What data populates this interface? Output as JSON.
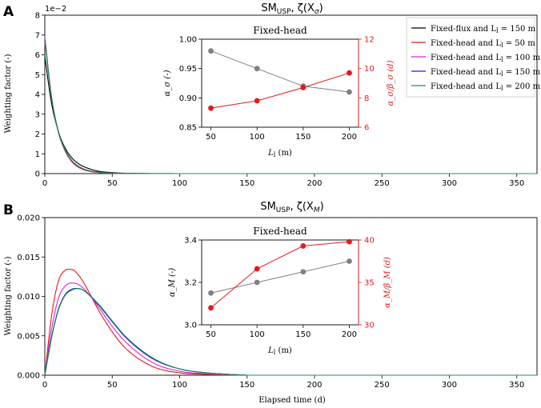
{
  "chart_data": [
    {
      "panel": "A",
      "type": "line",
      "title_main": "SM",
      "title_sub": "USP",
      "title_rest": ", ζ(X",
      "title_var_sub": "σ",
      "title_close": ")",
      "xlabel": "",
      "ylabel": "Weighting factor (-)",
      "offset_text": "1e−2",
      "xlim": [
        0,
        365
      ],
      "ylim": [
        0,
        8
      ],
      "xticks": [
        0,
        50,
        100,
        150,
        200,
        250,
        300,
        350
      ],
      "yticks": [
        0,
        1,
        2,
        3,
        4,
        5,
        6,
        7,
        8
      ],
      "legend": [
        {
          "label": "Fixed-flux and L",
          "sub": "l",
          "suffix": " = 150 m",
          "color": "#000000"
        },
        {
          "label": "Fixed-head and L",
          "sub": "l",
          "suffix": " = 50 m",
          "color": "#e41a1c"
        },
        {
          "label": "Fixed-head and L",
          "sub": "l",
          "suffix": " = 100 m",
          "color": "#e01fe0"
        },
        {
          "label": "Fixed-head and L",
          "sub": "l",
          "suffix": " = 150 m",
          "color": "#1f1ff0"
        },
        {
          "label": "Fixed-head and L",
          "sub": "l",
          "suffix": " = 200 m",
          "color": "#1a9850"
        }
      ],
      "series": [
        {
          "name": "Fixed-flux L=150",
          "color": "#000000",
          "x": [
            0,
            5,
            10,
            15,
            20,
            25,
            30,
            40,
            50,
            60,
            80,
            100
          ],
          "values": [
            5.9,
            3.55,
            2.15,
            1.3,
            0.8,
            0.5,
            0.32,
            0.12,
            0.05,
            0.02,
            0.004,
            0.0
          ]
        },
        {
          "name": "Fixed-head L=50",
          "color": "#e41a1c",
          "x": [
            0,
            5,
            10,
            15,
            20,
            25,
            30,
            40,
            50,
            60,
            80,
            100
          ],
          "values": [
            6.9,
            3.85,
            2.1,
            1.15,
            0.6,
            0.32,
            0.17,
            0.05,
            0.015,
            0.005,
            0.0,
            0.0
          ]
        },
        {
          "name": "Fixed-head L=100",
          "color": "#e01fe0",
          "x": [
            0,
            5,
            10,
            15,
            20,
            25,
            30,
            40,
            50,
            60,
            80,
            100
          ],
          "values": [
            6.8,
            3.85,
            2.12,
            1.18,
            0.64,
            0.35,
            0.19,
            0.06,
            0.02,
            0.006,
            0.0,
            0.0
          ]
        },
        {
          "name": "Fixed-head L=150",
          "color": "#1f1ff0",
          "x": [
            0,
            5,
            10,
            15,
            20,
            25,
            30,
            40,
            50,
            60,
            80,
            100
          ],
          "values": [
            6.75,
            3.85,
            2.15,
            1.2,
            0.66,
            0.37,
            0.2,
            0.07,
            0.022,
            0.007,
            0.0,
            0.0
          ]
        },
        {
          "name": "Fixed-head L=200",
          "color": "#1a9850",
          "x": [
            0,
            5,
            10,
            15,
            20,
            25,
            30,
            40,
            50,
            60,
            80,
            100
          ],
          "values": [
            6.7,
            3.85,
            2.16,
            1.22,
            0.67,
            0.38,
            0.21,
            0.07,
            0.023,
            0.007,
            0.0,
            0.0
          ]
        }
      ],
      "inset": {
        "title": "Fixed-head",
        "type": "line",
        "x": [
          50,
          100,
          150,
          200
        ],
        "xticks": [
          50,
          100,
          150,
          200
        ],
        "xlabel_main": "L",
        "xlabel_sub": "l",
        "xlabel_rest": " (m)",
        "xlim": [
          40,
          210
        ],
        "left": {
          "label": "α_σ (-)",
          "ylim": [
            0.85,
            1.0
          ],
          "yticks": [
            "0.85",
            "0.90",
            "0.95",
            "1.00"
          ],
          "values": [
            0.98,
            0.95,
            0.92,
            0.91
          ],
          "color": "#808080"
        },
        "right": {
          "label": "α_σ/β_σ (d)",
          "ylim": [
            6,
            12
          ],
          "yticks": [
            "6",
            "8",
            "10",
            "12"
          ],
          "values": [
            7.3,
            7.8,
            8.7,
            9.7
          ],
          "color": "#e41a1c"
        }
      }
    },
    {
      "panel": "B",
      "type": "line",
      "title_main": "SM",
      "title_sub": "USP",
      "title_rest": ", ζ(X",
      "title_var_sub": "M",
      "title_close": ")",
      "xlabel": "Elapsed time (d)",
      "ylabel": "Weighting factor (-)",
      "xlim": [
        0,
        365
      ],
      "ylim": [
        0,
        0.02
      ],
      "xticks": [
        0,
        50,
        100,
        150,
        200,
        250,
        300,
        350
      ],
      "yticks": [
        "0.000",
        "0.005",
        "0.010",
        "0.015",
        "0.020"
      ],
      "series": [
        {
          "name": "Fixed-flux L=150",
          "color": "#000000",
          "x": [
            0,
            5,
            10,
            15,
            20,
            25,
            30,
            40,
            50,
            60,
            80,
            100,
            120,
            150
          ],
          "values": [
            0.0,
            0.0048,
            0.0083,
            0.0102,
            0.0109,
            0.011,
            0.0106,
            0.0089,
            0.0068,
            0.0048,
            0.0021,
            0.0008,
            0.0003,
            0.0
          ]
        },
        {
          "name": "Fixed-head L=50",
          "color": "#e41a1c",
          "x": [
            0,
            5,
            10,
            15,
            20,
            25,
            30,
            40,
            50,
            60,
            80,
            100,
            120,
            150
          ],
          "values": [
            0.0,
            0.0075,
            0.0119,
            0.0133,
            0.0134,
            0.0127,
            0.0114,
            0.0082,
            0.0055,
            0.0034,
            0.0011,
            0.0003,
            0.0001,
            0.0
          ]
        },
        {
          "name": "Fixed-head L=100",
          "color": "#e01fe0",
          "x": [
            0,
            5,
            10,
            15,
            20,
            25,
            30,
            40,
            50,
            60,
            80,
            100,
            120,
            150
          ],
          "values": [
            0.0,
            0.0058,
            0.0097,
            0.0113,
            0.0117,
            0.0115,
            0.0108,
            0.0086,
            0.0062,
            0.0042,
            0.0016,
            0.0005,
            0.0002,
            0.0
          ]
        },
        {
          "name": "Fixed-head L=150",
          "color": "#1f1ff0",
          "x": [
            0,
            5,
            10,
            15,
            20,
            25,
            30,
            40,
            50,
            60,
            80,
            100,
            120,
            150
          ],
          "values": [
            0.0,
            0.0048,
            0.0083,
            0.0102,
            0.0109,
            0.011,
            0.0106,
            0.0089,
            0.0068,
            0.0048,
            0.0021,
            0.0008,
            0.0003,
            0.0
          ]
        },
        {
          "name": "Fixed-head L=200",
          "color": "#1a9850",
          "x": [
            0,
            5,
            10,
            15,
            20,
            25,
            30,
            40,
            50,
            60,
            80,
            100,
            120,
            150
          ],
          "values": [
            0.0,
            0.0047,
            0.0082,
            0.0101,
            0.0108,
            0.011,
            0.0106,
            0.009,
            0.0069,
            0.0049,
            0.0022,
            0.0008,
            0.0003,
            0.0
          ]
        }
      ],
      "inset": {
        "title": "Fixed-head",
        "type": "line",
        "x": [
          50,
          100,
          150,
          200
        ],
        "xticks": [
          50,
          100,
          150,
          200
        ],
        "xlabel_main": "L",
        "xlabel_sub": "l",
        "xlabel_rest": " (m)",
        "xlim": [
          40,
          210
        ],
        "left": {
          "label": "α_M (-)",
          "ylim": [
            3.0,
            3.4
          ],
          "yticks": [
            "3.0",
            "3.2",
            "3.4"
          ],
          "values": [
            3.15,
            3.2,
            3.25,
            3.3
          ],
          "color": "#808080"
        },
        "right": {
          "label": "α_M/β_M (d)",
          "ylim": [
            30,
            40
          ],
          "yticks": [
            "30",
            "35",
            "40"
          ],
          "values": [
            32,
            36.6,
            39.3,
            39.8
          ],
          "color": "#e41a1c"
        }
      }
    }
  ]
}
